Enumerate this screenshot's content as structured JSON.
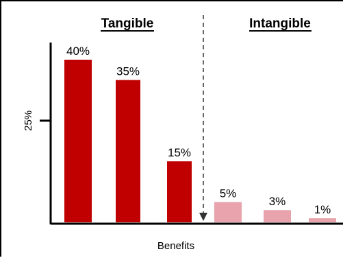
{
  "chart_data": {
    "type": "bar",
    "categories": [
      "Tangible",
      "Tangible",
      "Tangible",
      "Intangible",
      "Intangible",
      "Intangible"
    ],
    "values": [
      40,
      35,
      15,
      5,
      3,
      1
    ],
    "value_labels": [
      "40%",
      "35%",
      "15%",
      "5%",
      "3%",
      "1%"
    ],
    "groups": [
      {
        "title": "Tangible",
        "color": "#c00000"
      },
      {
        "title": "Intangible",
        "color": "#e8a3ad"
      }
    ],
    "xlabel": "Benefits",
    "ylabel": "",
    "ytick_label": "25%",
    "ytick_value": 25,
    "ylim": [
      0,
      45
    ],
    "grid": false,
    "legend": "none"
  }
}
